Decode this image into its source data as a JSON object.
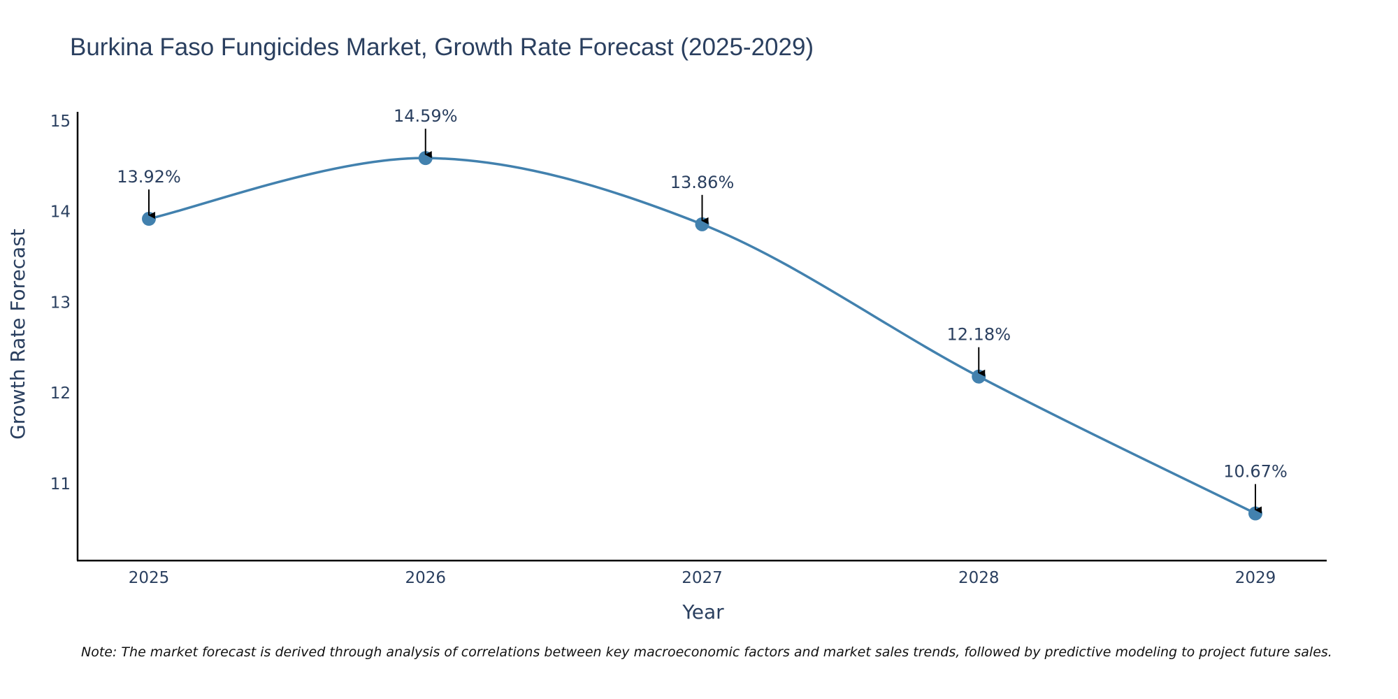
{
  "chart_data": {
    "type": "line",
    "title": "Burkina Faso Fungicides Market, Growth Rate Forecast (2025-2029)",
    "xlabel": "Year",
    "ylabel": "Growth Rate Forecast",
    "categories": [
      "2025",
      "2026",
      "2027",
      "2028",
      "2029"
    ],
    "series": [
      {
        "name": "Growth Rate Forecast",
        "values": [
          13.92,
          14.59,
          13.86,
          12.18,
          10.67
        ],
        "labels": [
          "13.92%",
          "14.59%",
          "13.86%",
          "12.18%",
          "10.67%"
        ]
      }
    ],
    "yticks": [
      11,
      12,
      13,
      14,
      15
    ],
    "ylim": [
      10.15,
      15.1
    ],
    "grid": false,
    "line_shape": "spline",
    "color": "#4281ae"
  },
  "note": "Note: The market forecast is derived through analysis of correlations between key macroeconomic factors and market sales trends, followed by predictive modeling to project future sales."
}
